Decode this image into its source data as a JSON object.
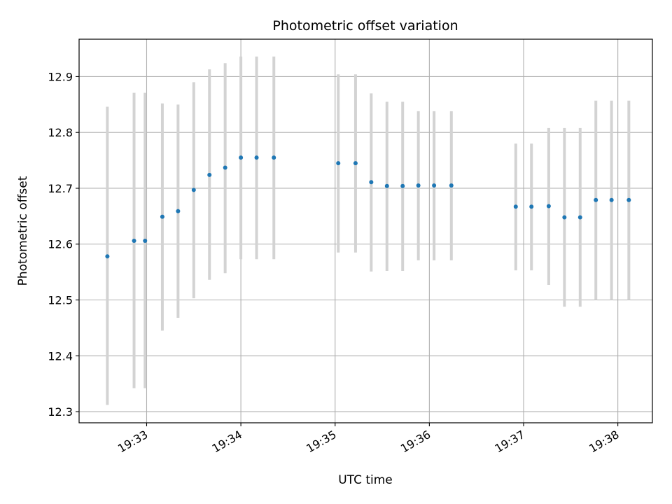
{
  "chart_data": {
    "type": "scatter",
    "title": "Photometric offset variation",
    "xlabel": "UTC time",
    "ylabel": "Photometric offset",
    "xlim": [
      "19:32:17",
      "19:38:22"
    ],
    "ylim": [
      12.28,
      12.967
    ],
    "grid": true,
    "x_ticks": [
      "19:33",
      "19:34",
      "19:35",
      "19:36",
      "19:37",
      "19:38"
    ],
    "y_ticks": [
      "12.3",
      "12.4",
      "12.5",
      "12.6",
      "12.7",
      "12.8",
      "12.9"
    ],
    "colors": {
      "marker": "#1f77b4",
      "errorbar": "#d3d3d3",
      "grid": "#b0b0b0"
    },
    "points": [
      {
        "time": "19:32:35",
        "value": 12.578,
        "lower": 12.312,
        "upper": 12.846
      },
      {
        "time": "19:32:52",
        "value": 12.606,
        "lower": 12.342,
        "upper": 12.871
      },
      {
        "time": "19:32:59",
        "value": 12.606,
        "lower": 12.342,
        "upper": 12.871
      },
      {
        "time": "19:33:10",
        "value": 12.649,
        "lower": 12.445,
        "upper": 12.852
      },
      {
        "time": "19:33:20",
        "value": 12.659,
        "lower": 12.468,
        "upper": 12.85
      },
      {
        "time": "19:33:30",
        "value": 12.697,
        "lower": 12.503,
        "upper": 12.89
      },
      {
        "time": "19:33:40",
        "value": 12.724,
        "lower": 12.536,
        "upper": 12.913
      },
      {
        "time": "19:33:50",
        "value": 12.737,
        "lower": 12.548,
        "upper": 12.924
      },
      {
        "time": "19:34:00",
        "value": 12.755,
        "lower": 12.573,
        "upper": 12.936
      },
      {
        "time": "19:34:10",
        "value": 12.755,
        "lower": 12.573,
        "upper": 12.936
      },
      {
        "time": "19:34:21",
        "value": 12.755,
        "lower": 12.573,
        "upper": 12.936
      },
      {
        "time": "19:35:02",
        "value": 12.745,
        "lower": 12.585,
        "upper": 12.904
      },
      {
        "time": "19:35:13",
        "value": 12.745,
        "lower": 12.585,
        "upper": 12.904
      },
      {
        "time": "19:35:23",
        "value": 12.711,
        "lower": 12.551,
        "upper": 12.87
      },
      {
        "time": "19:35:33",
        "value": 12.704,
        "lower": 12.552,
        "upper": 12.855
      },
      {
        "time": "19:35:43",
        "value": 12.704,
        "lower": 12.552,
        "upper": 12.855
      },
      {
        "time": "19:35:53",
        "value": 12.705,
        "lower": 12.571,
        "upper": 12.838
      },
      {
        "time": "19:36:03",
        "value": 12.705,
        "lower": 12.571,
        "upper": 12.838
      },
      {
        "time": "19:36:14",
        "value": 12.705,
        "lower": 12.571,
        "upper": 12.838
      },
      {
        "time": "19:36:55",
        "value": 12.667,
        "lower": 12.553,
        "upper": 12.78
      },
      {
        "time": "19:37:05",
        "value": 12.667,
        "lower": 12.553,
        "upper": 12.78
      },
      {
        "time": "19:37:16",
        "value": 12.668,
        "lower": 12.527,
        "upper": 12.808
      },
      {
        "time": "19:37:26",
        "value": 12.648,
        "lower": 12.488,
        "upper": 12.808
      },
      {
        "time": "19:37:36",
        "value": 12.648,
        "lower": 12.488,
        "upper": 12.808
      },
      {
        "time": "19:37:46",
        "value": 12.679,
        "lower": 12.5,
        "upper": 12.857
      },
      {
        "time": "19:37:56",
        "value": 12.679,
        "lower": 12.5,
        "upper": 12.857
      },
      {
        "time": "19:38:07",
        "value": 12.679,
        "lower": 12.5,
        "upper": 12.857
      }
    ]
  }
}
